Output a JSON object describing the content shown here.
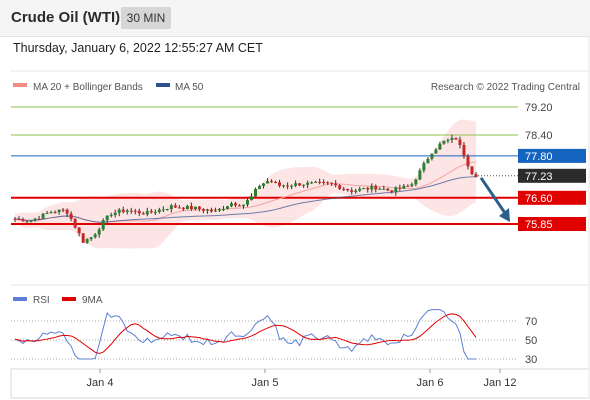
{
  "header": {
    "instrument": "Crude Oil (WTI)",
    "timeframe": "30 MIN"
  },
  "timestamp": "Thursday, January 6, 2022 12:55:27 AM CET",
  "legend": {
    "ma20": "MA 20 + Bollinger Bands",
    "ma50": "MA 50",
    "credit": "Research © 2022 Trading Central"
  },
  "colors": {
    "up": "#2e7d32",
    "down": "#c62828",
    "resistance": "#1565c0",
    "support": "#e00000",
    "target_level": "#8bc34a",
    "ma50": "#2f4f8f",
    "bands": "#fde0e0",
    "rsi": "#5b7fd6",
    "rsi_ma": "#e00000",
    "arrow": "#2c5f8a"
  },
  "chart_data": [
    {
      "type": "line",
      "title": "",
      "chart_kind": "candlestick",
      "x_ticks": [
        "Jan 4",
        "Jan 5",
        "Jan 6",
        "Jan 12"
      ],
      "ylim": [
        74.9,
        79.5
      ],
      "levels": [
        {
          "value": 79.2,
          "label": "79.20",
          "kind": "target"
        },
        {
          "value": 78.4,
          "label": "78.40",
          "kind": "target"
        },
        {
          "value": 77.8,
          "label": "77.80",
          "kind": "resistance"
        },
        {
          "value": 77.23,
          "label": "77.23",
          "kind": "current"
        },
        {
          "value": 76.6,
          "label": "76.60",
          "kind": "support"
        },
        {
          "value": 75.85,
          "label": "75.85",
          "kind": "support"
        }
      ],
      "current_price": 77.23,
      "forecast_arrow": {
        "from": 77.23,
        "to": 75.85,
        "direction": "down"
      },
      "series": [
        {
          "name": "MA 20 + Bollinger Bands"
        },
        {
          "name": "MA 50"
        }
      ]
    },
    {
      "type": "line",
      "title": "",
      "ylim": [
        20,
        90
      ],
      "y_ticks": [
        70,
        50,
        30
      ],
      "series": [
        {
          "name": "RSI"
        },
        {
          "name": "9MA"
        }
      ]
    }
  ]
}
